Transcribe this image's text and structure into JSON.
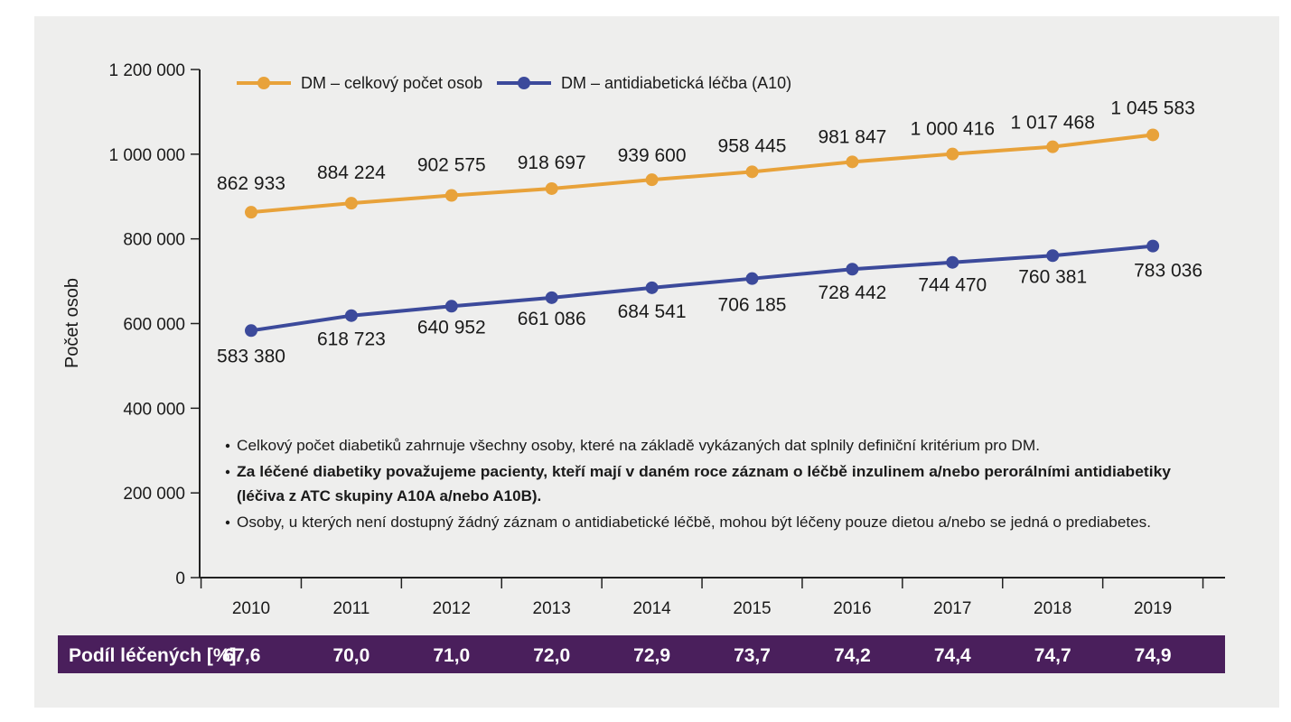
{
  "chart_data": {
    "type": "line",
    "title": "",
    "xlabel": "",
    "ylabel": "Počet osob",
    "ylim": [
      0,
      1200000
    ],
    "yticks": [
      0,
      200000,
      400000,
      600000,
      800000,
      1000000,
      1200000
    ],
    "ytick_labels": [
      "0",
      "200 000",
      "400 000",
      "600 000",
      "800 000",
      "1 000 000",
      "1 200 000"
    ],
    "categories": [
      "2010",
      "2011",
      "2012",
      "2013",
      "2014",
      "2015",
      "2016",
      "2017",
      "2018",
      "2019"
    ],
    "series": [
      {
        "name": "DM – celkový počet osob",
        "color": "#e8a23a",
        "values": [
          862933,
          884224,
          902575,
          918697,
          939600,
          958445,
          981847,
          1000416,
          1017468,
          1045583
        ],
        "labels": [
          "862 933",
          "884 224",
          "902 575",
          "918 697",
          "939 600",
          "958 445",
          "981 847",
          "1 000 416",
          "1 017 468",
          "1 045 583"
        ]
      },
      {
        "name": "DM – antidiabetická léčba (A10)",
        "color": "#3c4a9b",
        "values": [
          583380,
          618723,
          640952,
          661086,
          684541,
          706185,
          728442,
          744470,
          760381,
          783036
        ],
        "labels": [
          "583 380",
          "618 723",
          "640 952",
          "661 086",
          "684 541",
          "706 185",
          "728 442",
          "744 470",
          "760 381",
          "783 036"
        ]
      }
    ],
    "legend_position": "top-left",
    "grid": false,
    "notes": [
      {
        "text": "Celkový počet diabetiků zahrnuje všechny osoby, které na základě vykázaných dat splnily definiční kritérium pro DM.",
        "bold": false,
        "bullet": true
      },
      {
        "text": "Za léčené diabetiky považujeme pacienty, kteří mají v daném roce záznam o léčbě inzulinem a/nebo perorálními antidiabetiky",
        "bold": true,
        "bullet": true
      },
      {
        "text": "(léčiva z ATC skupiny A10A a/nebo A10B).",
        "bold": true,
        "bullet": false
      },
      {
        "text": "Osoby, u kterých není dostupný žádný záznam o antidiabetické léčbě, mohou být léčeny pouze dietou a/nebo se jedná o prediabetes.",
        "bold": false,
        "bullet": true
      }
    ],
    "share_row": {
      "label": "Podíl léčených [%]",
      "values": [
        "67,6",
        "70,0",
        "71,0",
        "72,0",
        "72,9",
        "73,7",
        "74,2",
        "74,4",
        "74,7",
        "74,9"
      ],
      "background": "#4a1f5c"
    }
  }
}
